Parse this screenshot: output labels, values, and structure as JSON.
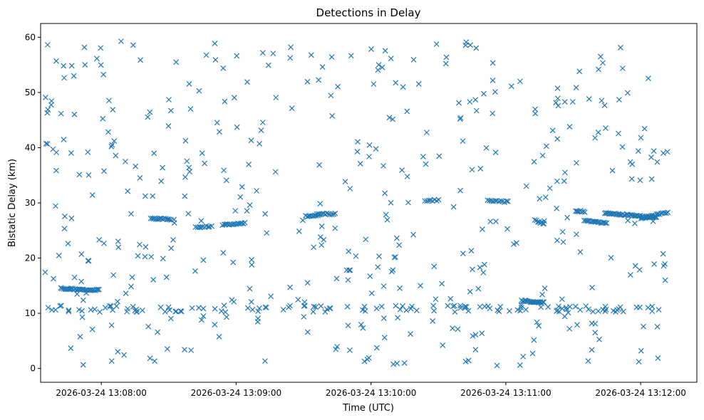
{
  "chart_data": {
    "type": "scatter",
    "title": "Detections in Delay",
    "xlabel": "Time (UTC)",
    "ylabel": "Bistatic Delay (km)",
    "marker": "x",
    "color": "#1f77b4",
    "xlim": [
      "2026-03-24 13:07:33",
      "2026-03-24 13:12:25"
    ],
    "ylim": [
      -2.5,
      62.5
    ],
    "x_ticks": [
      "2026-03-24 13:08:00",
      "2026-03-24 13:09:00",
      "2026-03-24 13:10:00",
      "2026-03-24 13:11:00",
      "2026-03-24 13:12:00"
    ],
    "y_ticks": [
      0,
      10,
      20,
      30,
      40,
      50,
      60
    ],
    "grid": false,
    "legend": "none",
    "clusters": [
      {
        "t_start": "2026-03-24 13:07:42",
        "t_end": "2026-03-24 13:07:59",
        "delay_start": 14.5,
        "delay_end": 14.2,
        "count": 30
      },
      {
        "t_start": "2026-03-24 13:08:22",
        "t_end": "2026-03-24 13:08:31",
        "delay_start": 27.2,
        "delay_end": 27.0,
        "count": 16
      },
      {
        "t_start": "2026-03-24 13:08:42",
        "t_end": "2026-03-24 13:08:49",
        "delay_start": 25.6,
        "delay_end": 25.8,
        "count": 10
      },
      {
        "t_start": "2026-03-24 13:08:54",
        "t_end": "2026-03-24 13:09:04",
        "delay_start": 26.0,
        "delay_end": 26.3,
        "count": 16
      },
      {
        "t_start": "2026-03-24 13:09:31",
        "t_end": "2026-03-24 13:09:37",
        "delay_start": 27.6,
        "delay_end": 27.8,
        "count": 10
      },
      {
        "t_start": "2026-03-24 13:09:36",
        "t_end": "2026-03-24 13:09:44",
        "delay_start": 28.0,
        "delay_end": 28.0,
        "count": 12
      },
      {
        "t_start": "2026-03-24 13:10:24",
        "t_end": "2026-03-24 13:10:30",
        "delay_start": 30.3,
        "delay_end": 30.5,
        "count": 8
      },
      {
        "t_start": "2026-03-24 13:10:52",
        "t_end": "2026-03-24 13:11:01",
        "delay_start": 30.4,
        "delay_end": 30.2,
        "count": 12
      },
      {
        "t_start": "2026-03-24 13:11:07",
        "t_end": "2026-03-24 13:11:17",
        "delay_start": 12.3,
        "delay_end": 11.9,
        "count": 22
      },
      {
        "t_start": "2026-03-24 13:11:13",
        "t_end": "2026-03-24 13:11:17",
        "delay_start": 26.8,
        "delay_end": 26.2,
        "count": 8
      },
      {
        "t_start": "2026-03-24 13:11:31",
        "t_end": "2026-03-24 13:11:35",
        "delay_start": 28.6,
        "delay_end": 28.4,
        "count": 8
      },
      {
        "t_start": "2026-03-24 13:11:35",
        "t_end": "2026-03-24 13:11:45",
        "delay_start": 26.8,
        "delay_end": 26.3,
        "count": 18
      },
      {
        "t_start": "2026-03-24 13:11:44",
        "t_end": "2026-03-24 13:12:07",
        "delay_start": 28.2,
        "delay_end": 27.3,
        "count": 44
      },
      {
        "t_start": "2026-03-24 13:12:00",
        "t_end": "2026-03-24 13:12:12",
        "delay_start": 27.2,
        "delay_end": 28.3,
        "count": 18
      }
    ],
    "background_detections": {
      "t_start": "2026-03-24 13:07:35",
      "t_end": "2026-03-24 13:12:12",
      "delay_range": [
        0.5,
        59.8
      ],
      "count": 560,
      "note": "approximately uniform noise; a dense band of points near 10–11 km across the whole time span"
    }
  }
}
